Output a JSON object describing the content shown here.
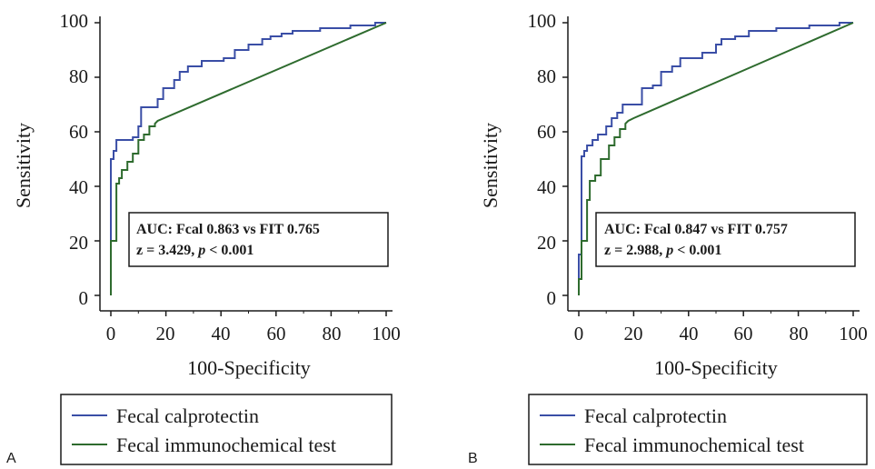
{
  "figure": {
    "legend": [
      {
        "label": "Fecal calprotectin",
        "color": "#3a4ea6"
      },
      {
        "label": "Fecal immunochemical test",
        "color": "#2e6b2e"
      }
    ]
  },
  "chart_data": [
    {
      "panel_label": "A",
      "type": "line",
      "xlabel": "100-Specificity",
      "ylabel": "Sensitivity",
      "xlim": [
        0,
        100
      ],
      "ylim": [
        0,
        100
      ],
      "xticks": [
        "0",
        "20",
        "40",
        "60",
        "80",
        "100"
      ],
      "yticks": [
        "0",
        "20",
        "40",
        "60",
        "80",
        "100"
      ],
      "grid": false,
      "annotation": {
        "line1": "AUC: Fcal 0.863 vs FIT 0.765",
        "line2": "z = 3.429, ",
        "p": "p",
        "line2_end": " < 0.001"
      },
      "series": [
        {
          "name": "Fecal calprotectin",
          "color": "#3a4ea6",
          "points": [
            [
              0,
              0
            ],
            [
              0,
              50
            ],
            [
              1,
              50
            ],
            [
              1,
              53
            ],
            [
              2,
              53
            ],
            [
              2,
              57
            ],
            [
              8,
              57
            ],
            [
              8,
              58
            ],
            [
              10,
              58
            ],
            [
              10,
              62
            ],
            [
              11,
              62
            ],
            [
              11,
              69
            ],
            [
              17,
              69
            ],
            [
              17,
              72
            ],
            [
              19,
              72
            ],
            [
              19,
              76
            ],
            [
              23,
              76
            ],
            [
              23,
              79
            ],
            [
              25,
              79
            ],
            [
              25,
              82
            ],
            [
              28,
              82
            ],
            [
              28,
              84
            ],
            [
              33,
              84
            ],
            [
              33,
              86
            ],
            [
              41,
              86
            ],
            [
              41,
              87
            ],
            [
              45,
              87
            ],
            [
              45,
              90
            ],
            [
              50,
              90
            ],
            [
              50,
              92
            ],
            [
              55,
              92
            ],
            [
              55,
              94
            ],
            [
              58,
              94
            ],
            [
              58,
              95
            ],
            [
              62,
              95
            ],
            [
              62,
              96
            ],
            [
              66,
              96
            ],
            [
              66,
              97
            ],
            [
              76,
              97
            ],
            [
              76,
              98
            ],
            [
              87,
              98
            ],
            [
              87,
              99
            ],
            [
              96,
              99
            ],
            [
              96,
              100
            ],
            [
              100,
              100
            ]
          ]
        },
        {
          "name": "Fecal immunochemical test",
          "color": "#2e6b2e",
          "points": [
            [
              0,
              0
            ],
            [
              0,
              20
            ],
            [
              2,
              20
            ],
            [
              2,
              41
            ],
            [
              3,
              41
            ],
            [
              3,
              43
            ],
            [
              4,
              43
            ],
            [
              4,
              46
            ],
            [
              6,
              46
            ],
            [
              6,
              49
            ],
            [
              8,
              49
            ],
            [
              8,
              52
            ],
            [
              10,
              52
            ],
            [
              10,
              57
            ],
            [
              12,
              57
            ],
            [
              12,
              59
            ],
            [
              14,
              59
            ],
            [
              14,
              62
            ],
            [
              16,
              62
            ],
            [
              16,
              63
            ],
            [
              17,
              64
            ],
            [
              100,
              100
            ]
          ]
        }
      ]
    },
    {
      "panel_label": "B",
      "type": "line",
      "xlabel": "100-Specificity",
      "ylabel": "Sensitivity",
      "xlim": [
        0,
        100
      ],
      "ylim": [
        0,
        100
      ],
      "xticks": [
        "0",
        "20",
        "40",
        "60",
        "80",
        "100"
      ],
      "yticks": [
        "0",
        "20",
        "40",
        "60",
        "80",
        "100"
      ],
      "grid": false,
      "annotation": {
        "line1": "AUC: Fcal 0.847 vs FIT 0.757",
        "line2": "z = 2.988, ",
        "p": "p",
        "line2_end": " < 0.001"
      },
      "series": [
        {
          "name": "Fecal calprotectin",
          "color": "#3a4ea6",
          "points": [
            [
              0,
              0
            ],
            [
              0,
              15
            ],
            [
              1,
              15
            ],
            [
              1,
              51
            ],
            [
              2,
              51
            ],
            [
              2,
              53
            ],
            [
              3,
              53
            ],
            [
              3,
              55
            ],
            [
              5,
              55
            ],
            [
              5,
              57
            ],
            [
              7,
              57
            ],
            [
              7,
              59
            ],
            [
              10,
              59
            ],
            [
              10,
              62
            ],
            [
              12,
              62
            ],
            [
              12,
              65
            ],
            [
              14,
              65
            ],
            [
              14,
              67
            ],
            [
              16,
              67
            ],
            [
              16,
              70
            ],
            [
              23,
              70
            ],
            [
              23,
              76
            ],
            [
              27,
              76
            ],
            [
              27,
              77
            ],
            [
              30,
              77
            ],
            [
              30,
              82
            ],
            [
              34,
              82
            ],
            [
              34,
              84
            ],
            [
              37,
              84
            ],
            [
              37,
              87
            ],
            [
              45,
              87
            ],
            [
              45,
              89
            ],
            [
              50,
              89
            ],
            [
              50,
              92
            ],
            [
              52,
              92
            ],
            [
              52,
              94
            ],
            [
              57,
              94
            ],
            [
              57,
              95
            ],
            [
              62,
              95
            ],
            [
              62,
              97
            ],
            [
              72,
              97
            ],
            [
              72,
              98
            ],
            [
              84,
              98
            ],
            [
              84,
              99
            ],
            [
              95,
              99
            ],
            [
              95,
              100
            ],
            [
              100,
              100
            ]
          ]
        },
        {
          "name": "Fecal immunochemical test",
          "color": "#2e6b2e",
          "points": [
            [
              0,
              0
            ],
            [
              0,
              6
            ],
            [
              1,
              6
            ],
            [
              1,
              20
            ],
            [
              3,
              20
            ],
            [
              3,
              35
            ],
            [
              4,
              35
            ],
            [
              4,
              42
            ],
            [
              6,
              42
            ],
            [
              6,
              44
            ],
            [
              8,
              44
            ],
            [
              8,
              50
            ],
            [
              11,
              50
            ],
            [
              11,
              55
            ],
            [
              13,
              55
            ],
            [
              13,
              58
            ],
            [
              15,
              58
            ],
            [
              15,
              61
            ],
            [
              17,
              61
            ],
            [
              17,
              63
            ],
            [
              18,
              64
            ],
            [
              20,
              65
            ],
            [
              100,
              100
            ]
          ]
        }
      ]
    }
  ]
}
